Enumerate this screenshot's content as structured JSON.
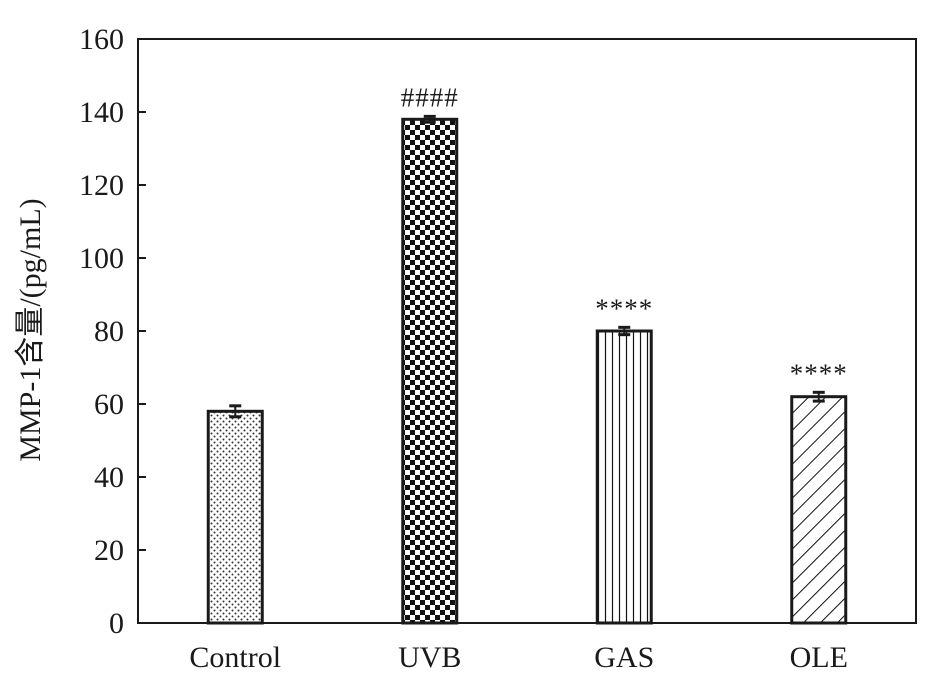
{
  "chart_data": {
    "type": "bar",
    "title": "",
    "xlabel": "",
    "ylabel": "MMP-1含量/(pg/mL)",
    "ylim": [
      0,
      160
    ],
    "yticks": [
      0,
      20,
      40,
      60,
      80,
      100,
      120,
      140,
      160
    ],
    "grid": false,
    "legend": "none",
    "categories": [
      "Control",
      "UVB",
      "GAS",
      "OLE"
    ],
    "values": [
      58,
      138,
      80,
      62
    ],
    "errors": [
      1.5,
      0.8,
      1.0,
      1.2
    ],
    "annotations": [
      "",
      "####",
      "****",
      "****"
    ],
    "patterns": [
      "dots",
      "checker",
      "vertical-lines",
      "diagonal-lines"
    ],
    "colors": {
      "stroke": "#1a1a1a",
      "fill": "#ffffff"
    }
  }
}
